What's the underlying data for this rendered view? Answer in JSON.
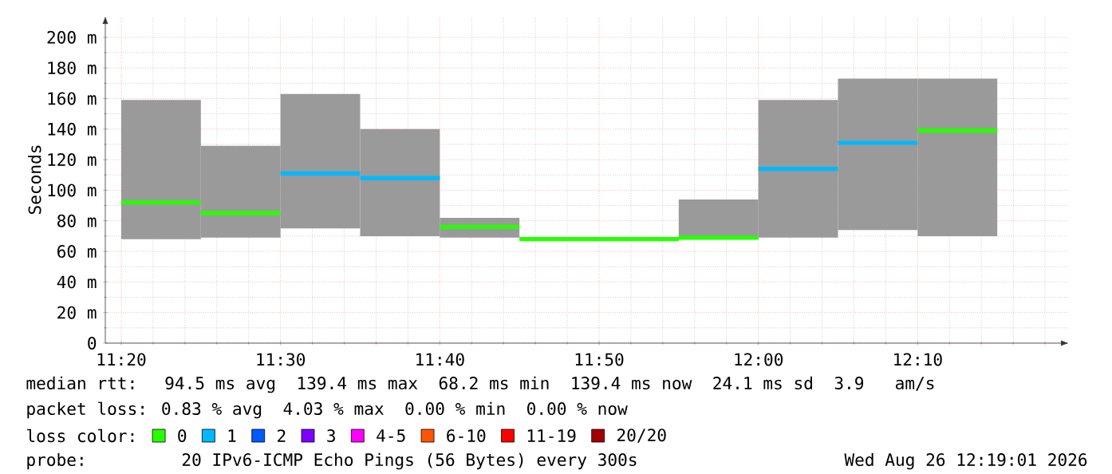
{
  "chart_data": {
    "type": "line",
    "ylabel": "Seconds",
    "xlim": [
      11.316667,
      12.325
    ],
    "ylim": [
      0,
      214
    ],
    "xticks": [
      {
        "value": 11.333333,
        "label": "11:20"
      },
      {
        "value": 11.366667,
        "label": null
      },
      {
        "value": 11.4,
        "label": null
      },
      {
        "value": 11.433333,
        "label": null
      },
      {
        "value": 11.466667,
        "label": null
      },
      {
        "value": 11.5,
        "label": "11:30"
      },
      {
        "value": 11.533333,
        "label": null
      },
      {
        "value": 11.566667,
        "label": null
      },
      {
        "value": 11.6,
        "label": null
      },
      {
        "value": 11.633333,
        "label": null
      },
      {
        "value": 11.666667,
        "label": "11:40"
      },
      {
        "value": 11.7,
        "label": null
      },
      {
        "value": 11.733333,
        "label": null
      },
      {
        "value": 11.766667,
        "label": null
      },
      {
        "value": 11.8,
        "label": null
      },
      {
        "value": 11.833333,
        "label": "11:50"
      },
      {
        "value": 11.866667,
        "label": null
      },
      {
        "value": 11.9,
        "label": null
      },
      {
        "value": 11.933333,
        "label": null
      },
      {
        "value": 11.966667,
        "label": null
      },
      {
        "value": 12.0,
        "label": "12:00"
      },
      {
        "value": 12.033333,
        "label": null
      },
      {
        "value": 12.066667,
        "label": null
      },
      {
        "value": 12.1,
        "label": null
      },
      {
        "value": 12.133333,
        "label": null
      },
      {
        "value": 12.166667,
        "label": "12:10"
      },
      {
        "value": 12.2,
        "label": null
      },
      {
        "value": 12.233333,
        "label": null
      },
      {
        "value": 12.266667,
        "label": null
      },
      {
        "value": 12.3,
        "label": null
      }
    ],
    "yticks": [
      0,
      {
        "value": 10,
        "label": null
      },
      {
        "value": 20,
        "label": "20 m"
      },
      {
        "value": 30,
        "label": null
      },
      {
        "value": 40,
        "label": "40 m"
      },
      {
        "value": 50,
        "label": null
      },
      {
        "value": 60,
        "label": "60 m"
      },
      {
        "value": 70,
        "label": null
      },
      {
        "value": 80,
        "label": "80 m"
      },
      {
        "value": 90,
        "label": null
      },
      {
        "value": 100,
        "label": "100 m"
      },
      {
        "value": 110,
        "label": null
      },
      {
        "value": 120,
        "label": "120 m"
      },
      {
        "value": 130,
        "label": null
      },
      {
        "value": 140,
        "label": "140 m"
      },
      {
        "value": 150,
        "label": null
      },
      {
        "value": 160,
        "label": "160 m"
      },
      {
        "value": 170,
        "label": null
      },
      {
        "value": 180,
        "label": "180 m"
      },
      {
        "value": 190,
        "label": null
      },
      {
        "value": 200,
        "label": "200 m"
      }
    ],
    "grid": true,
    "legend": "bottom",
    "legend_title": "loss color:",
    "series": [
      {
        "type": "bar",
        "color": "#9a9a9a",
        "x": [
          null,
          11.375,
          11.458333,
          11.541667,
          11.625,
          11.708333,
          11.958333,
          12.041667,
          12.125,
          12.208333
        ],
        "base": [
          null,
          68,
          69,
          75,
          70,
          69,
          68,
          69,
          74,
          70
        ],
        "values": [
          null,
          91,
          60,
          88,
          70,
          13,
          26,
          90,
          99,
          103
        ]
      },
      {
        "name": "0",
        "color": "#26ff00",
        "x": [
          11.333333,
          11.416667,
          null,
          11.416667,
          11.5,
          null,
          11.666667,
          11.75,
          null,
          11.75,
          11.916667,
          null,
          11.916667,
          12.0,
          null,
          12.166667,
          12.25
        ],
        "values": [
          92,
          92,
          null,
          85,
          85,
          null,
          76,
          76,
          null,
          68,
          68,
          null,
          69,
          69,
          null,
          139,
          139
        ]
      },
      {
        "name": "1",
        "color": "#00b8ff",
        "x": [
          11.5,
          11.583333,
          null,
          11.583333,
          11.666667,
          null,
          12.0,
          12.083333,
          null,
          12.083333,
          12.166667
        ],
        "values": [
          111,
          111,
          null,
          108,
          108,
          null,
          114,
          114,
          null,
          131,
          131
        ]
      },
      {
        "name": "2",
        "color": "#0059ff"
      },
      {
        "name": "3",
        "color": "#7e00ff"
      },
      {
        "name": "4-5",
        "color": "#ff00ff"
      },
      {
        "name": "6-10",
        "color": "#ff5500"
      },
      {
        "name": "11-19",
        "color": "#ff0000"
      },
      {
        "name": "20/20",
        "color": "#a10000"
      }
    ],
    "annotations": [
      "median rtt:  94.5 ms avg  139.4 ms max  68.2 ms min  139.4 ms now  24.1 ms sd  3.9   am/s",
      "packet loss: 0.83 % avg  4.03 % max  0.00 % min  0.00 % now",
      "probe:       20 IPv6-ICMP Echo Pings (56 Bytes) every 300s",
      "Wed Aug 26 12:19:01 2026"
    ]
  }
}
